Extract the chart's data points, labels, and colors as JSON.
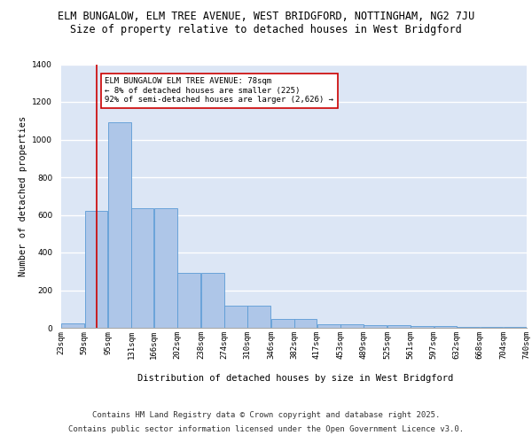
{
  "title_line1": "ELM BUNGALOW, ELM TREE AVENUE, WEST BRIDGFORD, NOTTINGHAM, NG2 7JU",
  "title_line2": "Size of property relative to detached houses in West Bridgford",
  "xlabel": "Distribution of detached houses by size in West Bridgford",
  "ylabel": "Number of detached properties",
  "bar_left_edges": [
    23,
    59,
    95,
    131,
    166,
    202,
    238,
    274,
    310,
    346,
    382,
    417,
    453,
    489,
    525,
    561,
    597,
    632,
    668,
    704
  ],
  "bar_widths": [
    36,
    36,
    36,
    35,
    36,
    36,
    36,
    36,
    36,
    36,
    35,
    36,
    36,
    36,
    36,
    36,
    35,
    36,
    36,
    36
  ],
  "bar_heights": [
    25,
    620,
    1090,
    635,
    635,
    290,
    290,
    120,
    120,
    45,
    45,
    20,
    20,
    12,
    12,
    8,
    8,
    3,
    3,
    3
  ],
  "tick_labels": [
    "23sqm",
    "59sqm",
    "95sqm",
    "131sqm",
    "166sqm",
    "202sqm",
    "238sqm",
    "274sqm",
    "310sqm",
    "346sqm",
    "382sqm",
    "417sqm",
    "453sqm",
    "489sqm",
    "525sqm",
    "561sqm",
    "597sqm",
    "632sqm",
    "668sqm",
    "704sqm",
    "740sqm"
  ],
  "bar_color": "#aec6e8",
  "bar_edge_color": "#5b9bd5",
  "bg_color": "#dce6f5",
  "grid_color": "#ffffff",
  "vline_x": 78,
  "vline_color": "#cc0000",
  "annotation_text": "ELM BUNGALOW ELM TREE AVENUE: 78sqm\n← 8% of detached houses are smaller (225)\n92% of semi-detached houses are larger (2,626) →",
  "annotation_box_color": "#ffffff",
  "annotation_box_edge": "#cc0000",
  "ylim": [
    0,
    1400
  ],
  "yticks": [
    0,
    200,
    400,
    600,
    800,
    1000,
    1200,
    1400
  ],
  "footer_line1": "Contains HM Land Registry data © Crown copyright and database right 2025.",
  "footer_line2": "Contains public sector information licensed under the Open Government Licence v3.0.",
  "title_fontsize": 8.5,
  "subtitle_fontsize": 8.5,
  "tick_fontsize": 6.5,
  "ylabel_fontsize": 7.5,
  "xlabel_fontsize": 7.5,
  "annotation_fontsize": 6.5,
  "footer_fontsize": 6.5
}
